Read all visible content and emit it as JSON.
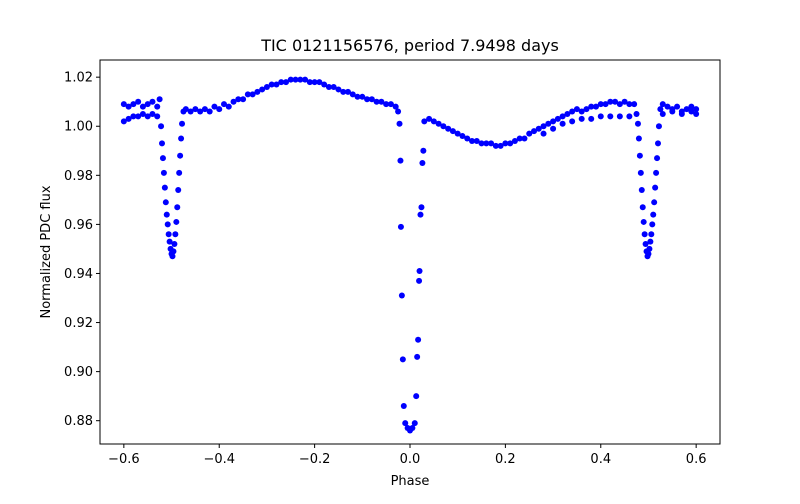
{
  "chart_data": {
    "type": "scatter",
    "title": "TIC 0121156576, period 7.9498 days",
    "xlabel": "Phase",
    "ylabel": "Normalized PDC flux",
    "xlim": [
      -0.65,
      0.65
    ],
    "ylim": [
      0.8705,
      1.027
    ],
    "x_ticks": [
      -0.6,
      -0.4,
      -0.2,
      0.0,
      0.2,
      0.4,
      0.6
    ],
    "x_tick_labels": [
      "−0.6",
      "−0.4",
      "−0.2",
      "0.0",
      "0.2",
      "0.4",
      "0.6"
    ],
    "y_ticks": [
      0.88,
      0.9,
      0.92,
      0.94,
      0.96,
      0.98,
      1.0,
      1.02
    ],
    "y_tick_labels": [
      "0.88",
      "0.90",
      "0.92",
      "0.94",
      "0.96",
      "0.98",
      "1.00",
      "1.02"
    ],
    "grid": false,
    "legend": "none",
    "point_color": "#0000ff",
    "series": [
      {
        "points": [
          [
            -0.6,
            1.009
          ],
          [
            -0.6,
            1.002
          ],
          [
            -0.59,
            1.008
          ],
          [
            -0.59,
            1.003
          ],
          [
            -0.58,
            1.009
          ],
          [
            -0.58,
            1.004
          ],
          [
            -0.57,
            1.01
          ],
          [
            -0.57,
            1.004
          ],
          [
            -0.56,
            1.008
          ],
          [
            -0.56,
            1.005
          ],
          [
            -0.55,
            1.009
          ],
          [
            -0.55,
            1.004
          ],
          [
            -0.54,
            1.01
          ],
          [
            -0.54,
            1.005
          ],
          [
            -0.53,
            1.008
          ],
          [
            -0.53,
            1.004
          ],
          [
            -0.525,
            1.011
          ],
          [
            -0.522,
            1.0
          ],
          [
            -0.52,
            0.993
          ],
          [
            -0.518,
            0.987
          ],
          [
            -0.516,
            0.981
          ],
          [
            -0.514,
            0.975
          ],
          [
            -0.512,
            0.969
          ],
          [
            -0.51,
            0.964
          ],
          [
            -0.508,
            0.96
          ],
          [
            -0.506,
            0.956
          ],
          [
            -0.504,
            0.953
          ],
          [
            -0.502,
            0.95
          ],
          [
            -0.5,
            0.948
          ],
          [
            -0.498,
            0.947
          ],
          [
            -0.496,
            0.949
          ],
          [
            -0.494,
            0.952
          ],
          [
            -0.492,
            0.956
          ],
          [
            -0.49,
            0.961
          ],
          [
            -0.488,
            0.967
          ],
          [
            -0.486,
            0.974
          ],
          [
            -0.484,
            0.981
          ],
          [
            -0.482,
            0.988
          ],
          [
            -0.48,
            0.995
          ],
          [
            -0.478,
            1.001
          ],
          [
            -0.475,
            1.006
          ],
          [
            -0.47,
            1.007
          ],
          [
            -0.46,
            1.006
          ],
          [
            -0.45,
            1.007
          ],
          [
            -0.44,
            1.006
          ],
          [
            -0.43,
            1.007
          ],
          [
            -0.42,
            1.006
          ],
          [
            -0.41,
            1.008
          ],
          [
            -0.4,
            1.007
          ],
          [
            -0.39,
            1.009
          ],
          [
            -0.38,
            1.008
          ],
          [
            -0.37,
            1.01
          ],
          [
            -0.36,
            1.011
          ],
          [
            -0.35,
            1.011
          ],
          [
            -0.34,
            1.013
          ],
          [
            -0.33,
            1.013
          ],
          [
            -0.32,
            1.014
          ],
          [
            -0.31,
            1.015
          ],
          [
            -0.3,
            1.016
          ],
          [
            -0.29,
            1.017
          ],
          [
            -0.28,
            1.017
          ],
          [
            -0.27,
            1.018
          ],
          [
            -0.26,
            1.018
          ],
          [
            -0.25,
            1.019
          ],
          [
            -0.24,
            1.019
          ],
          [
            -0.23,
            1.019
          ],
          [
            -0.22,
            1.019
          ],
          [
            -0.21,
            1.018
          ],
          [
            -0.2,
            1.018
          ],
          [
            -0.19,
            1.018
          ],
          [
            -0.18,
            1.017
          ],
          [
            -0.17,
            1.016
          ],
          [
            -0.16,
            1.016
          ],
          [
            -0.15,
            1.015
          ],
          [
            -0.14,
            1.014
          ],
          [
            -0.13,
            1.014
          ],
          [
            -0.12,
            1.013
          ],
          [
            -0.11,
            1.012
          ],
          [
            -0.1,
            1.012
          ],
          [
            -0.09,
            1.011
          ],
          [
            -0.08,
            1.011
          ],
          [
            -0.07,
            1.01
          ],
          [
            -0.06,
            1.01
          ],
          [
            -0.05,
            1.009
          ],
          [
            -0.04,
            1.009
          ],
          [
            -0.03,
            1.008
          ],
          [
            -0.025,
            1.006
          ],
          [
            -0.022,
            1.001
          ],
          [
            -0.02,
            0.986
          ],
          [
            -0.019,
            0.959
          ],
          [
            -0.017,
            0.931
          ],
          [
            -0.015,
            0.905
          ],
          [
            -0.013,
            0.886
          ],
          [
            -0.01,
            0.879
          ],
          [
            -0.005,
            0.877
          ],
          [
            0.0,
            0.876
          ],
          [
            0.005,
            0.877
          ],
          [
            0.01,
            0.879
          ],
          [
            0.013,
            0.89
          ],
          [
            0.015,
            0.906
          ],
          [
            0.017,
            0.913
          ],
          [
            0.019,
            0.937
          ],
          [
            0.02,
            0.941
          ],
          [
            0.022,
            0.964
          ],
          [
            0.024,
            0.967
          ],
          [
            0.026,
            0.985
          ],
          [
            0.028,
            0.99
          ],
          [
            0.03,
            1.002
          ],
          [
            0.04,
            1.003
          ],
          [
            0.05,
            1.002
          ],
          [
            0.06,
            1.001
          ],
          [
            0.07,
            1.0
          ],
          [
            0.08,
            0.999
          ],
          [
            0.09,
            0.998
          ],
          [
            0.1,
            0.997
          ],
          [
            0.11,
            0.996
          ],
          [
            0.12,
            0.995
          ],
          [
            0.13,
            0.994
          ],
          [
            0.14,
            0.994
          ],
          [
            0.15,
            0.993
          ],
          [
            0.16,
            0.993
          ],
          [
            0.17,
            0.993
          ],
          [
            0.18,
            0.992
          ],
          [
            0.19,
            0.992
          ],
          [
            0.2,
            0.993
          ],
          [
            0.21,
            0.993
          ],
          [
            0.22,
            0.994
          ],
          [
            0.23,
            0.995
          ],
          [
            0.24,
            0.995
          ],
          [
            0.25,
            0.997
          ],
          [
            0.26,
            0.998
          ],
          [
            0.27,
            0.999
          ],
          [
            0.28,
            1.0
          ],
          [
            0.29,
            1.001
          ],
          [
            0.3,
            1.002
          ],
          [
            0.31,
            1.003
          ],
          [
            0.32,
            1.004
          ],
          [
            0.33,
            1.005
          ],
          [
            0.34,
            1.006
          ],
          [
            0.35,
            1.007
          ],
          [
            0.36,
            1.006
          ],
          [
            0.37,
            1.007
          ],
          [
            0.38,
            1.008
          ],
          [
            0.39,
            1.008
          ],
          [
            0.4,
            1.009
          ],
          [
            0.41,
            1.009
          ],
          [
            0.42,
            1.01
          ],
          [
            0.43,
            1.01
          ],
          [
            0.44,
            1.009
          ],
          [
            0.45,
            1.01
          ],
          [
            0.46,
            1.009
          ],
          [
            0.47,
            1.009
          ],
          [
            0.28,
            0.997
          ],
          [
            0.3,
            0.999
          ],
          [
            0.32,
            1.001
          ],
          [
            0.34,
            1.002
          ],
          [
            0.36,
            1.003
          ],
          [
            0.38,
            1.003
          ],
          [
            0.4,
            1.004
          ],
          [
            0.42,
            1.004
          ],
          [
            0.44,
            1.004
          ],
          [
            0.46,
            1.004
          ],
          [
            0.475,
            1.005
          ],
          [
            0.478,
            1.001
          ],
          [
            0.48,
            0.995
          ],
          [
            0.482,
            0.988
          ],
          [
            0.484,
            0.981
          ],
          [
            0.486,
            0.974
          ],
          [
            0.488,
            0.967
          ],
          [
            0.49,
            0.961
          ],
          [
            0.492,
            0.956
          ],
          [
            0.494,
            0.952
          ],
          [
            0.496,
            0.949
          ],
          [
            0.498,
            0.947
          ],
          [
            0.5,
            0.948
          ],
          [
            0.502,
            0.95
          ],
          [
            0.504,
            0.953
          ],
          [
            0.506,
            0.956
          ],
          [
            0.508,
            0.96
          ],
          [
            0.51,
            0.964
          ],
          [
            0.512,
            0.969
          ],
          [
            0.514,
            0.975
          ],
          [
            0.516,
            0.981
          ],
          [
            0.518,
            0.987
          ],
          [
            0.52,
            0.993
          ],
          [
            0.522,
            1.0
          ],
          [
            0.525,
            1.007
          ],
          [
            0.53,
            1.009
          ],
          [
            0.54,
            1.008
          ],
          [
            0.55,
            1.007
          ],
          [
            0.56,
            1.008
          ],
          [
            0.57,
            1.006
          ],
          [
            0.58,
            1.007
          ],
          [
            0.59,
            1.008
          ],
          [
            0.6,
            1.007
          ],
          [
            0.53,
            1.005
          ],
          [
            0.55,
            1.006
          ],
          [
            0.57,
            1.005
          ],
          [
            0.59,
            1.006
          ],
          [
            0.6,
            1.005
          ]
        ]
      }
    ]
  }
}
